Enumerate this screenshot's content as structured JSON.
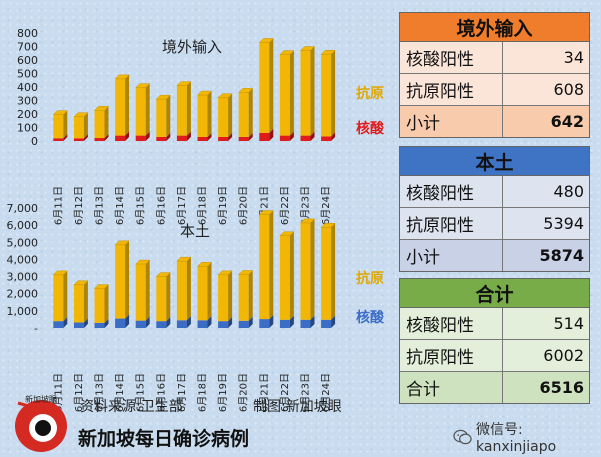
{
  "colors": {
    "antigen": "#f2b705",
    "pcr_top": "#e01b1b",
    "pcr_bottom": "#3b6cc6",
    "legend_pcr_top": "#e01b1b",
    "legend_pcr_bottom": "#3b6cc6",
    "legend_antigen": "#e0a800"
  },
  "chart_data": [
    {
      "type": "bar",
      "title": "境外输入",
      "stacked": true,
      "categories": [
        "6月11日",
        "6月12日",
        "6月13日",
        "6月14日",
        "6月15日",
        "6月16日",
        "6月17日",
        "6月18日",
        "6月19日",
        "6月20日",
        "6月21日",
        "6月22日",
        "6月23日",
        "6月24日"
      ],
      "series": [
        {
          "name": "核酸",
          "values": [
            20,
            20,
            22,
            40,
            40,
            30,
            40,
            30,
            30,
            30,
            60,
            40,
            40,
            34
          ]
        },
        {
          "name": "抗原",
          "values": [
            175,
            160,
            205,
            420,
            355,
            280,
            370,
            310,
            290,
            330,
            670,
            600,
            630,
            608
          ]
        }
      ],
      "yticks": [
        "800",
        "700",
        "600",
        "500",
        "400",
        "300",
        "200",
        "100",
        "0"
      ],
      "ylim": [
        0,
        800
      ]
    },
    {
      "type": "bar",
      "title": "本土",
      "stacked": true,
      "categories": [
        "6月11日",
        "6月12日",
        "6月13日",
        "6月14日",
        "6月15日",
        "6月16日",
        "6月17日",
        "6月18日",
        "6月19日",
        "6月20日",
        "6月21日",
        "6月22日",
        "6月23日",
        "6月24日"
      ],
      "series": [
        {
          "name": "核酸",
          "values": [
            400,
            320,
            300,
            550,
            430,
            400,
            450,
            450,
            400,
            420,
            520,
            480,
            480,
            480
          ]
        },
        {
          "name": "抗原",
          "values": [
            2700,
            2200,
            2000,
            4300,
            3300,
            2600,
            3450,
            3150,
            2700,
            2700,
            6100,
            4900,
            5650,
            5394
          ]
        }
      ],
      "yticks": [
        "7,000",
        "6,000",
        "5,000",
        "4,000",
        "3,000",
        "2,000",
        "1,000",
        "-"
      ],
      "ylim": [
        0,
        7000
      ]
    }
  ],
  "tables": [
    {
      "header": "境外输入",
      "rows": [
        {
          "label": "核酸阳性",
          "value": "34"
        },
        {
          "label": "抗原阳性",
          "value": "608"
        },
        {
          "label": "小计",
          "value": "642"
        }
      ]
    },
    {
      "header": "本土",
      "rows": [
        {
          "label": "核酸阳性",
          "value": "480"
        },
        {
          "label": "抗原阳性",
          "value": "5394"
        },
        {
          "label": "小计",
          "value": "5874"
        }
      ]
    },
    {
      "header": "合计",
      "rows": [
        {
          "label": "核酸阳性",
          "value": "514"
        },
        {
          "label": "抗原阳性",
          "value": "6002"
        },
        {
          "label": "合计",
          "value": "6516"
        }
      ]
    }
  ],
  "footer": {
    "source": "资料来源:卫生部",
    "maker": "制图:新加坡眼",
    "title": "新加坡每日确诊病例",
    "logo_text": "新加坡眼",
    "wechat": "微信号: kanxinjiapo"
  }
}
